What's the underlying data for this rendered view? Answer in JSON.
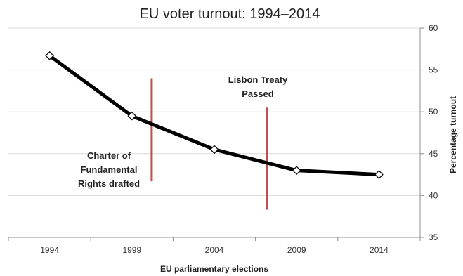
{
  "chart_data": {
    "type": "line",
    "title": "EU voter turnout: 1994–2014",
    "xlabel": "EU parliamentary elections",
    "ylabel": "Percentage turnout",
    "ylim": [
      35,
      60
    ],
    "y_ticks": [
      35,
      40,
      45,
      50,
      55,
      60
    ],
    "y_axis_side": "right",
    "grid": "horizontal",
    "legend": "none",
    "categories": [
      "1994",
      "1999",
      "2004",
      "2009",
      "2014"
    ],
    "series": [
      {
        "values": [
          56.7,
          49.5,
          45.5,
          43.0,
          42.5
        ],
        "color": "#000000",
        "marker": "open-diamond"
      }
    ],
    "annotations": [
      {
        "lines": [
          "Charter of",
          "Fundamental",
          "Rights drafted"
        ],
        "x": 2000.2,
        "y_range": [
          41.7,
          54.0
        ],
        "line_color": "#c0504d"
      },
      {
        "lines": [
          "Lisbon Treaty",
          "Passed"
        ],
        "x": 2007.2,
        "y_range": [
          38.3,
          50.5
        ],
        "line_color": "#c0504d"
      }
    ]
  }
}
